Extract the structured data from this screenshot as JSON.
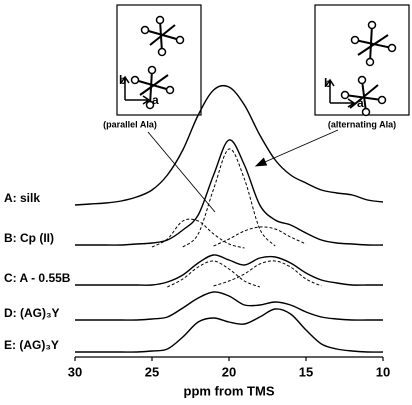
{
  "chart_data": {
    "type": "line",
    "x": [
      30,
      29,
      28,
      27,
      26,
      25,
      24,
      23,
      22,
      21,
      20,
      19,
      18,
      17,
      16,
      15,
      14,
      13,
      12,
      11,
      10
    ],
    "xlim": [
      30,
      10
    ],
    "xticks": [
      30,
      25,
      20,
      15,
      10
    ],
    "x_label": "ppm from TMS",
    "series": [
      {
        "name": "A: silk",
        "color": "#000000",
        "values": [
          0,
          1,
          2,
          4,
          8,
          15,
          30,
          55,
          90,
          115,
          118,
          100,
          70,
          45,
          30,
          22,
          15,
          12,
          10,
          5,
          3
        ]
      },
      {
        "name": "B: Cp (II)",
        "color": "#000000",
        "values": [
          0,
          0,
          0,
          0,
          1,
          2,
          5,
          15,
          30,
          70,
          105,
          80,
          40,
          25,
          20,
          12,
          5,
          2,
          1,
          0,
          0
        ],
        "components": [
          {
            "values": [
              null,
              null,
              null,
              null,
              null,
              2,
              10,
              28,
              28,
              15,
              5,
              1,
              null,
              null,
              null,
              null,
              null,
              null,
              null,
              null,
              null
            ]
          },
          {
            "values": [
              null,
              null,
              null,
              null,
              null,
              null,
              null,
              2,
              15,
              60,
              100,
              70,
              20,
              3,
              null,
              null,
              null,
              null,
              null,
              null,
              null
            ]
          },
          {
            "values": [
              null,
              null,
              null,
              null,
              null,
              null,
              null,
              null,
              null,
              3,
              10,
              18,
              22,
              20,
              12,
              5,
              null,
              null,
              null,
              null,
              null
            ]
          }
        ]
      },
      {
        "name": "C: A - 0.55B",
        "color": "#000000",
        "values": [
          0,
          0,
          0,
          0,
          0,
          0,
          3,
          10,
          22,
          30,
          25,
          20,
          27,
          28,
          22,
          12,
          5,
          2,
          0,
          0,
          0
        ],
        "components": [
          {
            "values": [
              null,
              null,
              null,
              null,
              null,
              null,
              2,
              10,
              22,
              28,
              20,
              8,
              2,
              null,
              null,
              null,
              null,
              null,
              null,
              null,
              null
            ]
          },
          {
            "values": [
              null,
              null,
              null,
              null,
              null,
              null,
              null,
              null,
              null,
              3,
              8,
              15,
              25,
              28,
              22,
              10,
              3,
              null,
              null,
              null,
              null
            ]
          }
        ]
      },
      {
        "name": "D: (AG)₃Y",
        "color": "#000000",
        "values": [
          0,
          0,
          0,
          0,
          0,
          1,
          3,
          12,
          22,
          28,
          24,
          15,
          15,
          18,
          15,
          8,
          3,
          1,
          0,
          0,
          0
        ]
      },
      {
        "name": "E: (AG)₃Y",
        "color": "#000000",
        "values": [
          0,
          0,
          0,
          0,
          0,
          1,
          3,
          15,
          30,
          34,
          30,
          28,
          35,
          43,
          38,
          22,
          8,
          3,
          1,
          0,
          0
        ]
      }
    ],
    "insets": [
      {
        "caption": "(parallel Ala)",
        "y_axis": "b",
        "x_axis": "a"
      },
      {
        "caption": "(alternating Ala)",
        "y_axis": "b",
        "x_axis": "a"
      }
    ]
  }
}
